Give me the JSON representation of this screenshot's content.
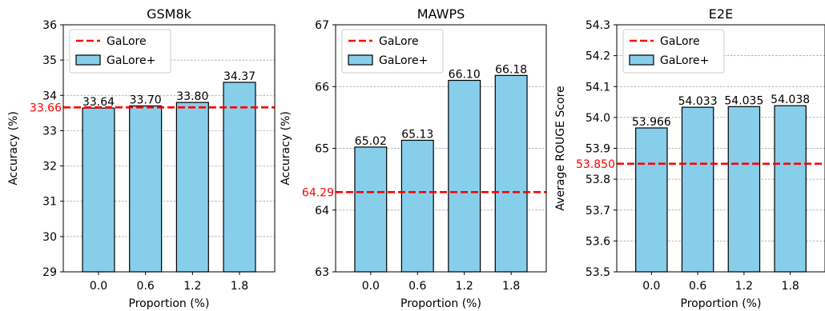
{
  "chart_data": [
    {
      "type": "bar",
      "title": "GSM8k",
      "xlabel": "Proportion (%)",
      "ylabel": "Accuracy (%)",
      "categories": [
        "0.0",
        "0.6",
        "1.2",
        "1.8"
      ],
      "values": [
        33.64,
        33.7,
        33.8,
        34.37
      ],
      "value_labels": [
        "33.64",
        "33.70",
        "33.80",
        "34.37"
      ],
      "ylim": [
        29,
        36
      ],
      "yticks": [
        29,
        30,
        31,
        32,
        33,
        34,
        35,
        36
      ],
      "ytick_labels": [
        "29",
        "30",
        "31",
        "32",
        "33",
        "34",
        "35",
        "36"
      ],
      "baseline": {
        "value": 33.66,
        "label": "33.66"
      },
      "grid": true,
      "legend_position": "top-left",
      "legend": [
        "GaLore",
        "GaLore+"
      ]
    },
    {
      "type": "bar",
      "title": "MAWPS",
      "xlabel": "Proportion (%)",
      "ylabel": "Accuracy (%)",
      "categories": [
        "0.0",
        "0.6",
        "1.2",
        "1.8"
      ],
      "values": [
        65.02,
        65.13,
        66.1,
        66.18
      ],
      "value_labels": [
        "65.02",
        "65.13",
        "66.10",
        "66.18"
      ],
      "ylim": [
        63,
        67
      ],
      "yticks": [
        63,
        64,
        65,
        66,
        67
      ],
      "ytick_labels": [
        "63",
        "64",
        "65",
        "66",
        "67"
      ],
      "baseline": {
        "value": 64.29,
        "label": "64.29"
      },
      "grid": true,
      "legend_position": "top-left",
      "legend": [
        "GaLore",
        "GaLore+"
      ]
    },
    {
      "type": "bar",
      "title": "E2E",
      "xlabel": "Proportion (%)",
      "ylabel": "Average ROUGE Score",
      "categories": [
        "0.0",
        "0.6",
        "1.2",
        "1.8"
      ],
      "values": [
        53.966,
        54.033,
        54.035,
        54.038
      ],
      "value_labels": [
        "53.966",
        "54.033",
        "54.035",
        "54.038"
      ],
      "ylim": [
        53.5,
        54.3
      ],
      "yticks": [
        53.5,
        53.6,
        53.7,
        53.8,
        53.9,
        54.0,
        54.1,
        54.2,
        54.3
      ],
      "ytick_labels": [
        "53.5",
        "53.6",
        "53.7",
        "53.8",
        "53.9",
        "54.0",
        "54.1",
        "54.2",
        "54.3"
      ],
      "baseline": {
        "value": 53.85,
        "label": "53.850"
      },
      "grid": true,
      "legend_position": "top-left",
      "legend": [
        "GaLore",
        "GaLore+"
      ]
    }
  ],
  "colors": {
    "bar_fill": "#87CEEB",
    "bar_edge": "#000000",
    "baseline": "#FF0000",
    "grid": "#999999"
  }
}
